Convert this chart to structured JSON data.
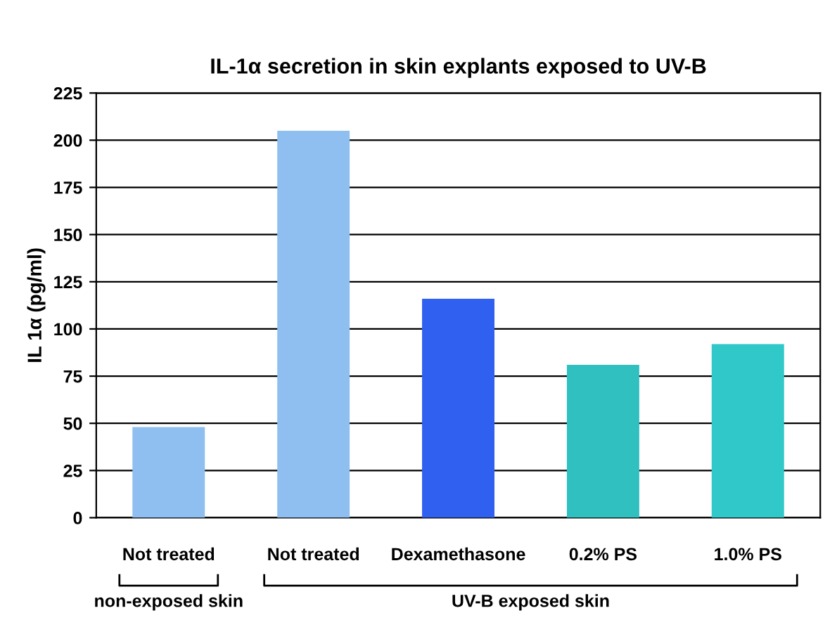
{
  "chart_data": {
    "type": "bar",
    "title": "IL-1α secretion in skin explants exposed to UV-B",
    "ylabel": "IL 1α (pg/ml)",
    "categories": [
      "Not treated",
      "Not treated",
      "Dexamethasone",
      "0.2% PS",
      "1.0% PS"
    ],
    "values": [
      48,
      205,
      116,
      81,
      92
    ],
    "colors": [
      "#8fbff0",
      "#8fbff0",
      "#3060f0",
      "#30c0c0",
      "#30c8c8"
    ],
    "ylim": [
      0,
      225
    ],
    "yticks": [
      0,
      25,
      50,
      75,
      100,
      125,
      150,
      175,
      200,
      225
    ],
    "grid": "y",
    "annotations": [
      "non-exposed skin",
      "UV-B exposed skin"
    ]
  }
}
